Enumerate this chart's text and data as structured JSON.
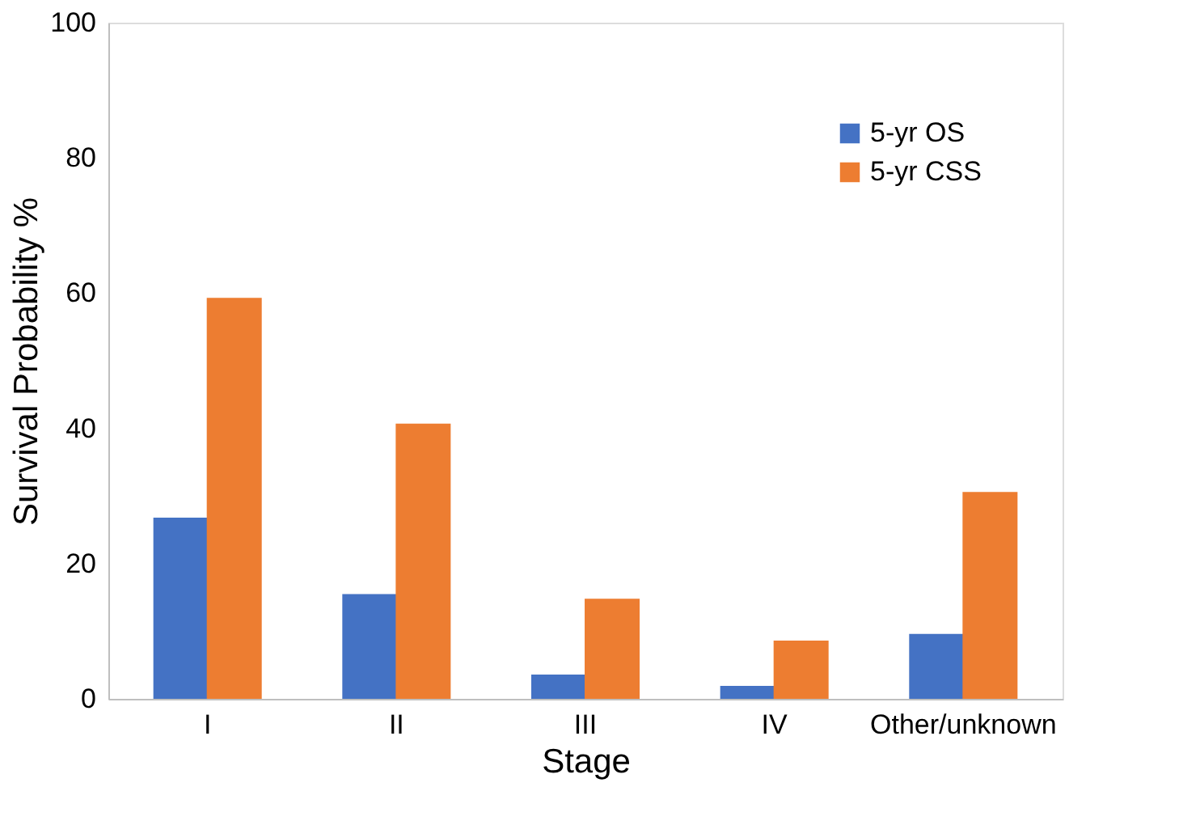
{
  "chart_data": {
    "type": "bar",
    "xlabel": "Stage",
    "ylabel": "Survival Probability %",
    "categories": [
      "I",
      "II",
      "III",
      "IV",
      "Other/unknown"
    ],
    "series": [
      {
        "name": "5-yr OS",
        "color": "#4472c4",
        "values": [
          26.8,
          15.5,
          3.6,
          1.9,
          9.6
        ]
      },
      {
        "name": "5-yr CSS",
        "color": "#ed7d31",
        "values": [
          59.3,
          40.7,
          14.8,
          8.6,
          30.6
        ]
      }
    ],
    "ylim": [
      0,
      100
    ],
    "yticks": [
      0,
      20,
      40,
      60,
      80,
      100
    ],
    "grid": false,
    "legend": "top right"
  }
}
